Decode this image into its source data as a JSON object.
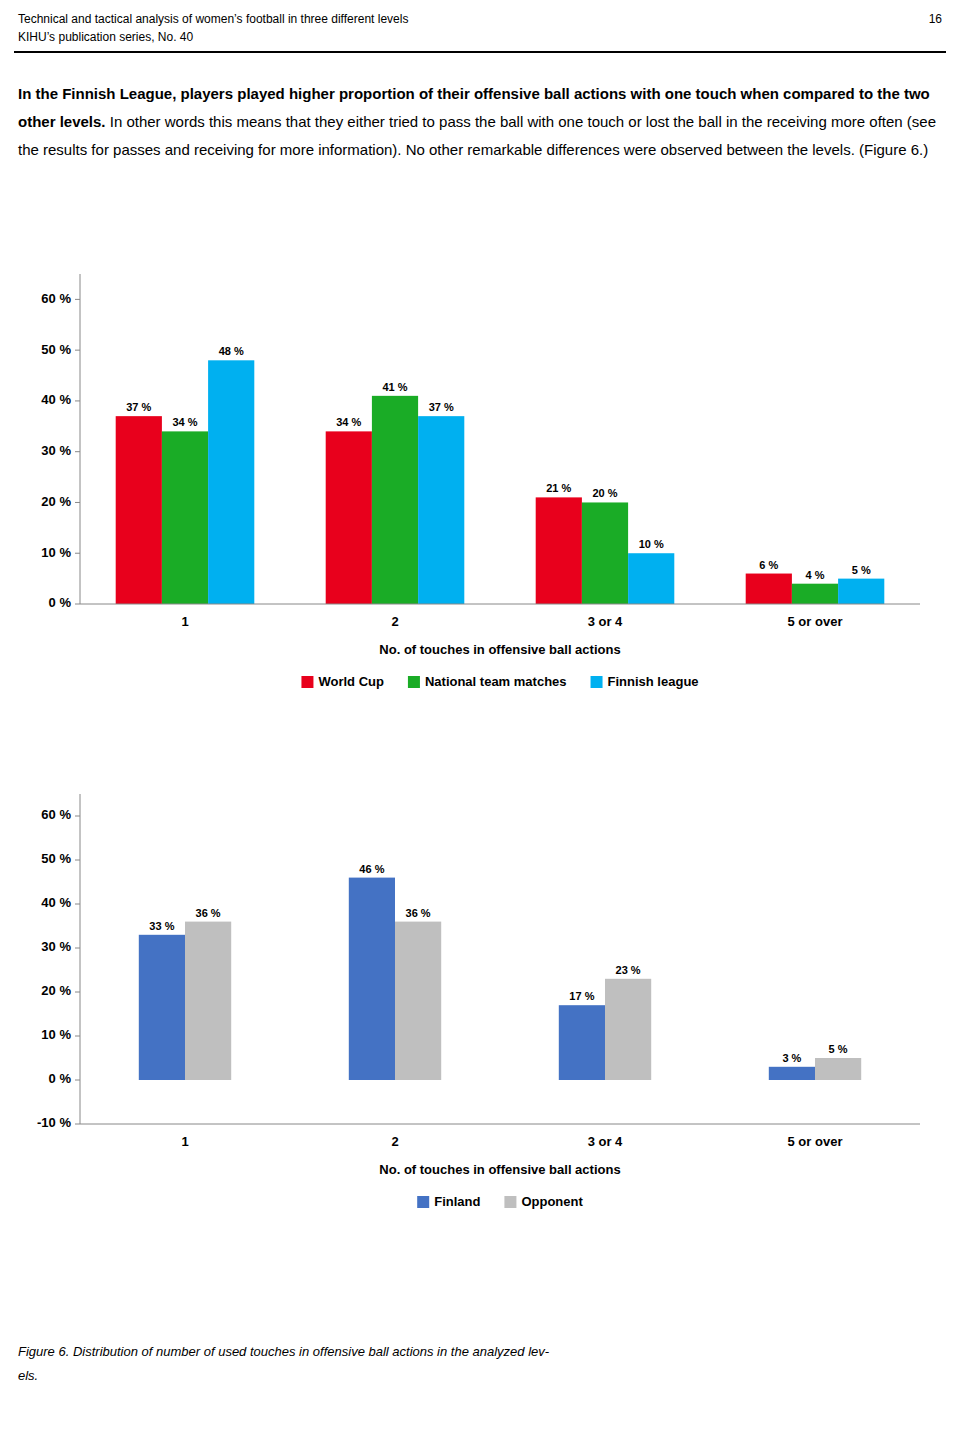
{
  "page_text": {
    "header": [
      "Technical and tactical analysis of women’s football in three different levels",
      "KIHU’s publication series, No. 40"
    ],
    "page_number": "16",
    "paragraph_bold": "In the Finnish League, players played higher proportion of their offensive ball actions with one touch when compared to the two other levels.",
    "paragraph_normal": " In other words this means that they either tried to pass the ball with one touch or lost the ball in the receiving more often (see the results for passes and receiving for more information). No other remarkable differences were observed between the levels. (Figure 6.)",
    "caption": [
      "Figure 6. Distribution of number of used touches in offensive ball actions in the analyzed lev-",
      "els."
    ]
  },
  "chart_data": [
    {
      "type": "bar",
      "categories": [
        "1",
        "2",
        "3 or 4",
        "5 or over"
      ],
      "series": [
        {
          "name": "World Cup",
          "color": "#e8001c",
          "values": [
            37,
            34,
            21,
            6
          ],
          "value_labels": [
            "37 %",
            "34 %",
            "21 %",
            "6 %"
          ]
        },
        {
          "name": "National team matches",
          "color": "#1aac26",
          "values": [
            34,
            41,
            20,
            4
          ],
          "value_labels": [
            "34 %",
            "41 %",
            "20 %",
            "4 %"
          ]
        },
        {
          "name": "Finnish league",
          "color": "#00b0f0",
          "values": [
            48,
            37,
            10,
            5
          ],
          "value_labels": [
            "48 %",
            "37 %",
            "10 %",
            "5 %"
          ]
        }
      ],
      "x_label": "No. of touches in offensive ball actions",
      "ylim": [
        0,
        65
      ],
      "yticks": [
        {
          "value": 0,
          "label": "0 %"
        },
        {
          "value": 10,
          "label": "10 %"
        },
        {
          "value": 20,
          "label": "20 %"
        },
        {
          "value": 30,
          "label": "30 %"
        },
        {
          "value": 40,
          "label": "40 %"
        },
        {
          "value": 50,
          "label": "50 %"
        },
        {
          "value": 60,
          "label": "60 %"
        }
      ],
      "data_labels": true,
      "grid": false,
      "legend": "bottom"
    },
    {
      "type": "bar",
      "categories": [
        "1",
        "2",
        "3 or 4",
        "5 or over"
      ],
      "series": [
        {
          "name": "Finland",
          "color": "#4472c4",
          "values": [
            33,
            46,
            17,
            3
          ],
          "value_labels": [
            "33 %",
            "46 %",
            "17 %",
            "3 %"
          ]
        },
        {
          "name": "Opponent",
          "color": "#bfbfbf",
          "values": [
            36,
            36,
            23,
            5
          ],
          "value_labels": [
            "36 %",
            "36 %",
            "23 %",
            "5 %"
          ]
        }
      ],
      "x_label": "No. of touches in offensive ball actions",
      "ylim": [
        -10,
        65
      ],
      "yticks": [
        {
          "value": -10,
          "label": "-10 %"
        },
        {
          "value": 0,
          "label": "0 %"
        },
        {
          "value": 10,
          "label": "10 %"
        },
        {
          "value": 20,
          "label": "20 %"
        },
        {
          "value": 30,
          "label": "30 %"
        },
        {
          "value": 40,
          "label": "40 %"
        },
        {
          "value": 50,
          "label": "50 %"
        },
        {
          "value": 60,
          "label": "60 %"
        }
      ],
      "data_labels": true,
      "grid": false,
      "legend": "bottom"
    }
  ]
}
